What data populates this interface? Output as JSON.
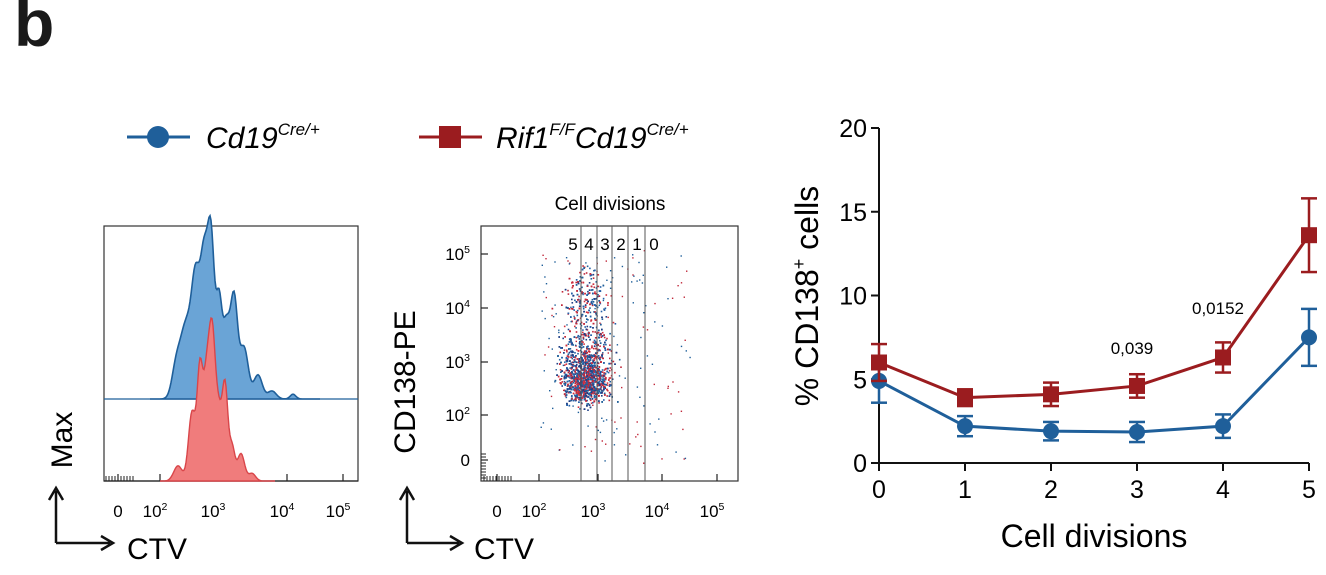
{
  "panel_letter": "b",
  "colors": {
    "ctrl": "#1f5f9a",
    "mut": "#9b1c1f",
    "ctrl_fill": "#6aa4d6",
    "mut_fill": "#f07c7c"
  },
  "legend": [
    {
      "base": "Cd19",
      "sup": "Cre/+",
      "marker": "circle"
    },
    {
      "base": "Rif1",
      "sup": "F/F",
      "base2": "Cd19",
      "sup2": "Cre/+",
      "marker": "square"
    }
  ],
  "histogram": {
    "ylabel": "Max",
    "xlabel": "CTV",
    "ticks": [
      {
        "base": "0",
        "sup": ""
      },
      {
        "base": "10",
        "sup": "2"
      },
      {
        "base": "10",
        "sup": "3"
      },
      {
        "base": "10",
        "sup": "4"
      },
      {
        "base": "10",
        "sup": "5"
      }
    ]
  },
  "dotplot": {
    "title": "Cell divisions",
    "ylabel": "CD138-PE",
    "xlabel": "CTV",
    "gate_labels": [
      "5",
      "4",
      "3",
      "2",
      "1",
      "0"
    ],
    "xticks": [
      {
        "base": "0",
        "sup": ""
      },
      {
        "base": "10",
        "sup": "2"
      },
      {
        "base": "10",
        "sup": "3"
      },
      {
        "base": "10",
        "sup": "4"
      },
      {
        "base": "10",
        "sup": "5"
      }
    ],
    "yticks": [
      {
        "base": "0",
        "sup": ""
      },
      {
        "base": "10",
        "sup": "2"
      },
      {
        "base": "10",
        "sup": "3"
      },
      {
        "base": "10",
        "sup": "4"
      },
      {
        "base": "10",
        "sup": "5"
      }
    ]
  },
  "chart_data": {
    "type": "line",
    "title": "",
    "xlabel": "Cell divisions",
    "ylabel_pre": "% CD138",
    "ylabel_sup": "+",
    "ylabel_post": " cells",
    "x": [
      0,
      1,
      2,
      3,
      4,
      5
    ],
    "xlim": [
      0,
      5
    ],
    "ylim": [
      0,
      20
    ],
    "yticks": [
      0,
      5,
      10,
      15,
      20
    ],
    "xticks": [
      0,
      1,
      2,
      3,
      4,
      5
    ],
    "series": [
      {
        "name": "Cd19Cre/+",
        "marker": "circle",
        "values": [
          4.9,
          2.2,
          1.9,
          1.85,
          2.2,
          7.5
        ],
        "err": [
          1.3,
          0.6,
          0.55,
          0.6,
          0.7,
          1.7
        ]
      },
      {
        "name": "Rif1F/FCd19Cre/+",
        "marker": "square",
        "values": [
          6.0,
          3.9,
          4.1,
          4.6,
          6.3,
          13.6
        ],
        "err": [
          1.1,
          0.5,
          0.7,
          0.7,
          0.9,
          2.2
        ]
      }
    ],
    "annotations": [
      {
        "x": 3,
        "y": 6.5,
        "text": "0,039"
      },
      {
        "x": 4,
        "y": 8.9,
        "text": "0,0152"
      }
    ]
  }
}
